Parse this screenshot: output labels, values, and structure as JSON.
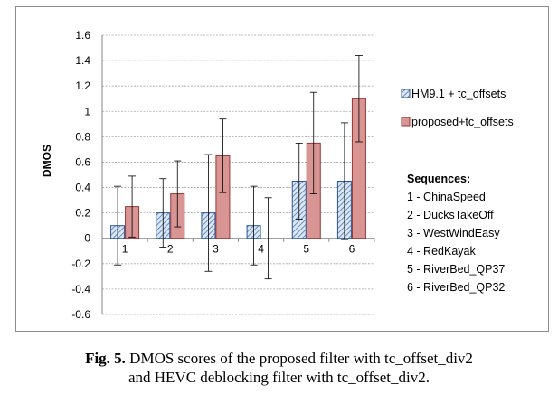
{
  "chart_data": {
    "type": "bar",
    "ylabel": "DMOS",
    "ylim": [
      -0.6,
      1.6
    ],
    "yticks": [
      -0.6,
      -0.4,
      -0.2,
      0,
      0.2,
      0.4,
      0.6,
      0.8,
      1,
      1.2,
      1.4,
      1.6
    ],
    "ytick_labels": [
      "-0.6",
      "-0.4",
      "-0.2",
      "0",
      "0.2",
      "0.4",
      "0.6",
      "0.8",
      "1",
      "1.2",
      "1.4",
      "1.6"
    ],
    "categories": [
      "1",
      "2",
      "3",
      "4",
      "5",
      "6"
    ],
    "grid": true,
    "legend_position": "right",
    "series": [
      {
        "name": "HM9.1 + tc_offsets",
        "color": "#b8cde6",
        "pattern": "diagonal-hatch",
        "values": [
          0.1,
          0.2,
          0.2,
          0.1,
          0.45,
          0.45
        ],
        "errors": [
          0.31,
          0.27,
          0.46,
          0.31,
          0.3,
          0.46
        ]
      },
      {
        "name": "proposed+tc_offsets",
        "color": "#d99594",
        "pattern": "solid",
        "values": [
          0.25,
          0.35,
          0.65,
          0.0,
          0.75,
          1.1
        ],
        "errors": [
          0.24,
          0.26,
          0.29,
          0.32,
          0.4,
          0.34
        ]
      }
    ],
    "sequences_title": "Sequences:",
    "sequences": [
      "1 - ChinaSpeed",
      "2 - DucksTakeOff",
      "3 - WestWindEasy",
      "4 - RedKayak",
      "5 - RiverBed_QP37",
      "6 - RiverBed_QP32"
    ]
  },
  "caption": {
    "label": "Fig. 5.",
    "line1": " DMOS scores of the proposed filter with tc_offset_div2",
    "line2": "and HEVC deblocking filter with tc_offset_div2."
  }
}
